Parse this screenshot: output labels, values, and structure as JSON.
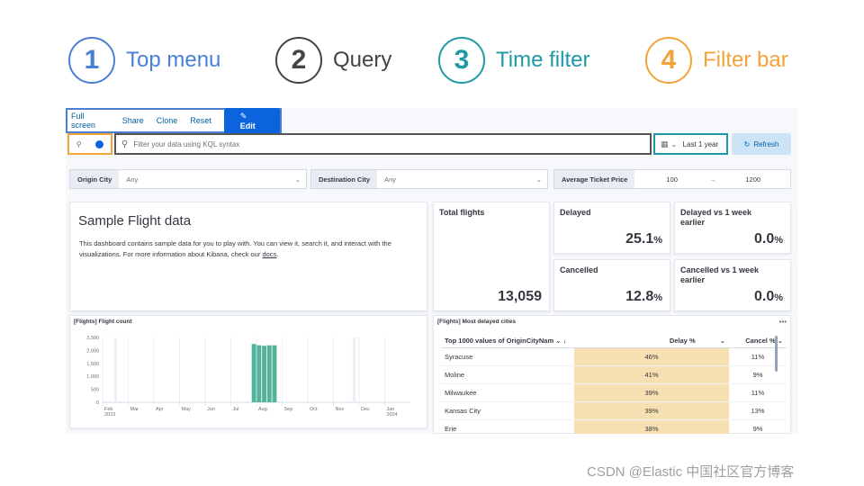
{
  "legend": [
    {
      "num": "1",
      "label": "Top menu",
      "color": "#4a7fd6"
    },
    {
      "num": "2",
      "label": "Query",
      "color": "#444444"
    },
    {
      "num": "3",
      "label": "Time filter",
      "color": "#1e9aa7"
    },
    {
      "num": "4",
      "label": "Filter bar",
      "color": "#f2a33a"
    }
  ],
  "topmenu": {
    "full_screen": "Full screen",
    "share": "Share",
    "clone": "Clone",
    "reset": "Reset",
    "edit": "Edit"
  },
  "query": {
    "placeholder": "Filter your data using KQL syntax"
  },
  "time": {
    "label": "Last 1 year",
    "refresh": "Refresh"
  },
  "controls": {
    "origin": {
      "label": "Origin City",
      "value": "Any"
    },
    "destination": {
      "label": "Destination City",
      "value": "Any"
    },
    "price": {
      "label": "Average Ticket Price",
      "min": "100",
      "max": "1200",
      "arrow": "→"
    }
  },
  "markdown": {
    "title": "Sample Flight data",
    "body": "This dashboard contains sample data for you to play with. You can view it, search it, and interact with the visualizations. For more information about Kibana, check our ",
    "link": "docs",
    "end": "."
  },
  "metrics": {
    "total": {
      "title": "Total flights",
      "value": "13,059"
    },
    "delayed": {
      "title": "Delayed",
      "value": "25.1",
      "unit": "%"
    },
    "delayed_week": {
      "title": "Delayed vs 1 week earlier",
      "value": "0.0",
      "unit": "%"
    },
    "cancelled": {
      "title": "Cancelled",
      "value": "12.8",
      "unit": "%"
    },
    "cancelled_week": {
      "title": "Cancelled vs 1 week earlier",
      "value": "0.0",
      "unit": "%"
    }
  },
  "flight_count": {
    "title": "[Flights] Flight count",
    "bar_color": "#54b399"
  },
  "chart_data": {
    "type": "bar",
    "title": "[Flights] Flight count",
    "y_ticks": [
      "2,500",
      "2,000",
      "1,500",
      "1,000",
      "500",
      "0"
    ],
    "ylim": [
      0,
      2500
    ],
    "x_ticks": [
      "Feb\n2023",
      "Mar",
      "Apr",
      "May",
      "Jun",
      "Jul",
      "Aug",
      "Sep",
      "Oct",
      "Nov",
      "Dec",
      "Jan\n2024"
    ],
    "values": [
      2250,
      2200,
      2180,
      2200,
      2200
    ],
    "bar_start_month": 5.8
  },
  "table": {
    "title": "[Flights] Most delayed cities",
    "col1": "Top 1000 values of OriginCityNam",
    "col2": "Delay %",
    "col3": "Cancel %",
    "rows": [
      {
        "city": "Syracuse",
        "delay": "46%",
        "cancel": "11%"
      },
      {
        "city": "Moline",
        "delay": "41%",
        "cancel": "9%"
      },
      {
        "city": "Milwaukee",
        "delay": "39%",
        "cancel": "11%"
      },
      {
        "city": "Kansas City",
        "delay": "39%",
        "cancel": "13%"
      },
      {
        "city": "Erie",
        "delay": "38%",
        "cancel": "9%"
      }
    ]
  },
  "watermark": "CSDN @Elastic 中国社区官方博客"
}
